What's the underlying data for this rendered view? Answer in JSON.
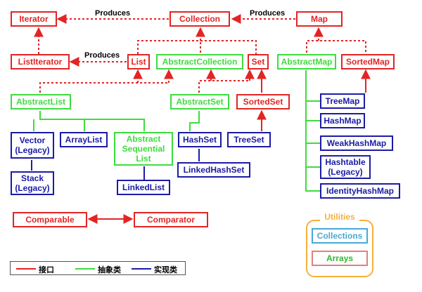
{
  "colors": {
    "interface": "#e32424",
    "abstract": "#3ddc3d",
    "implementation": "#1b1ba6",
    "utilities": "#f5b13a",
    "collections_box": "#48a8d8",
    "arrays_box": "#e08080",
    "arrays_text": "#33b533"
  },
  "nodes": {
    "iterator": "Iterator",
    "collection": "Collection",
    "map": "Map",
    "list_iterator": "ListIterator",
    "list": "List",
    "abstract_collection": "AbstractCollection",
    "set": "Set",
    "abstract_map": "AbstractMap",
    "sorted_map": "SortedMap",
    "abstract_list": "AbstractList",
    "abstract_set": "AbstractSet",
    "sorted_set": "SortedSet",
    "vector": "Vector\n(Legacy)",
    "array_list": "ArrayList",
    "abstract_sequential_list": "Abstract\nSequential\nList",
    "hash_set": "HashSet",
    "tree_set": "TreeSet",
    "stack": "Stack\n(Legacy)",
    "linked_list": "LinkedList",
    "linked_hash_set": "LinkedHashSet",
    "tree_map": "TreeMap",
    "hash_map": "HashMap",
    "weak_hash_map": "WeakHashMap",
    "hashtable": "Hashtable\n(Legacy)",
    "identity_hash_map": "IdentityHashMap",
    "comparable": "Comparable",
    "comparator": "Comparator"
  },
  "labels": {
    "produces_1": "Produces",
    "produces_2": "Produces",
    "produces_3": "Produces"
  },
  "utilities": {
    "title": "Utilities",
    "collections": "Collections",
    "arrays": "Arrays"
  },
  "legend": {
    "interface": "接口",
    "abstract": "抽象类",
    "implementation": "实现类"
  }
}
